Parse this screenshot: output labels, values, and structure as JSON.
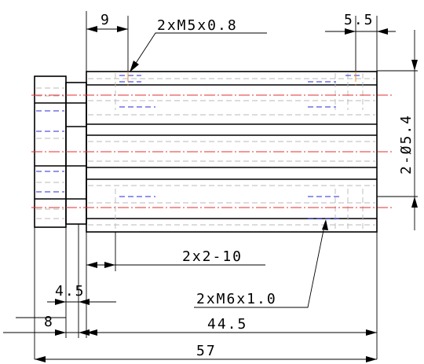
{
  "dimensions": {
    "top_offset": "9",
    "thread_top": "2xM5x0.8",
    "right_offset": "5.5",
    "holes": "2-Ø5.4",
    "slot": "2x2-10",
    "thread_bottom": "2xM6x1.0",
    "flange_thickness": "4.5",
    "flange_width": "8",
    "body_length": "44.5",
    "overall_length": "57"
  },
  "colors": {
    "outline": "#000000",
    "hidden": "#b8b8b8",
    "hidden_blue": "#2a2ad8",
    "centerline": "#e03030"
  }
}
